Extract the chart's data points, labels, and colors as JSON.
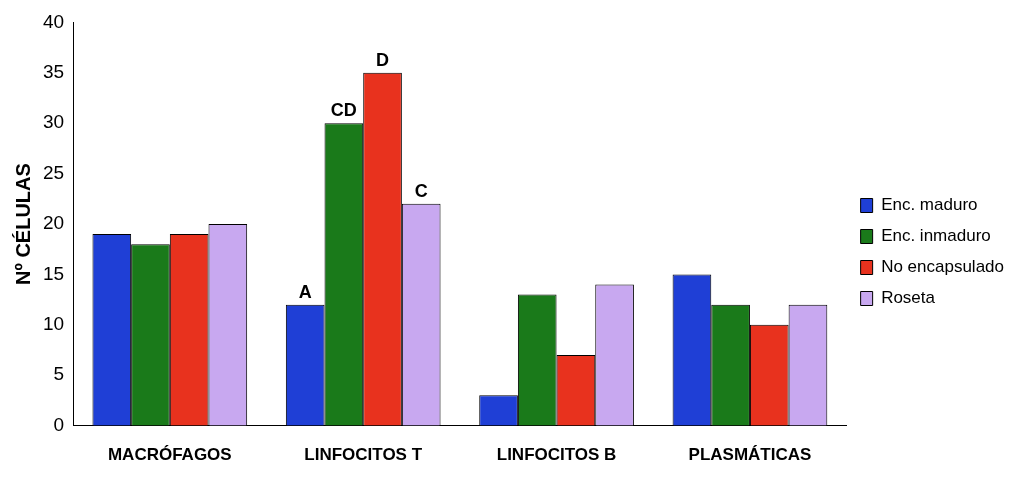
{
  "chart_data": {
    "type": "bar",
    "ylabel": "Nº CÉLULAS",
    "categories": [
      "MACRÓFAGOS",
      "LINFOCITOS T",
      "LINFOCITOS B",
      "PLASMÁTICAS"
    ],
    "series": [
      {
        "name": "Enc. maduro",
        "color": "#1f3fd6",
        "values": [
          19,
          12,
          3,
          15
        ]
      },
      {
        "name": "Enc. inmaduro",
        "color": "#1a7a1a",
        "values": [
          18,
          30,
          13,
          12
        ]
      },
      {
        "name": "No encapsulado",
        "color": "#e8321e",
        "values": [
          19,
          35,
          7,
          10
        ]
      },
      {
        "name": "Roseta",
        "color": "#c8a8f0",
        "values": [
          20,
          22,
          14,
          12
        ]
      }
    ],
    "ylim": [
      0,
      40
    ],
    "yticks": [
      0,
      5,
      10,
      15,
      20,
      25,
      30,
      35,
      40
    ],
    "grid": false,
    "legend": "right",
    "annotations": [
      {
        "text": "A",
        "x": "LINFOCITOS T",
        "y": 12
      },
      {
        "text": "CD",
        "x": "LINFOCITOS T",
        "y": 30
      },
      {
        "text": "D",
        "x": "LINFOCITOS T",
        "y": 35
      },
      {
        "text": "C",
        "x": "LINFOCITOS T",
        "y": 22
      }
    ]
  }
}
